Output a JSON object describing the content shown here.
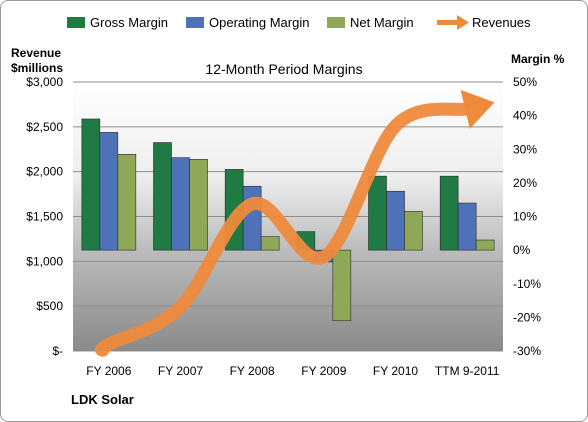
{
  "chart_data": {
    "type": "bar",
    "title": "12-Month Period Margins",
    "company_label": "LDK Solar",
    "left_axis_title": [
      "Revenue",
      "$millions"
    ],
    "right_axis_title": "Margin %",
    "categories": [
      "FY 2006",
      "FY 2007",
      "FY 2008",
      "FY 2009",
      "FY 2010",
      "TTM 9-2011"
    ],
    "left_axis": {
      "ylim": [
        0,
        3000
      ],
      "ticks": [
        0,
        500,
        1000,
        1500,
        2000,
        2500,
        3000
      ],
      "tick_labels": [
        "$-",
        "$500",
        "$1,000",
        "$1,500",
        "$2,000",
        "$2,500",
        "$3,000"
      ]
    },
    "right_axis": {
      "ylim": [
        -30,
        50
      ],
      "ticks": [
        -30,
        -20,
        -10,
        0,
        10,
        20,
        30,
        40,
        50
      ],
      "tick_labels": [
        "-30%",
        "-20%",
        "-10%",
        "0%",
        "10%",
        "20%",
        "30%",
        "40%",
        "50%"
      ]
    },
    "grid": true,
    "legend_position": "top",
    "series": [
      {
        "name": "Gross Margin",
        "axis": "right",
        "kind": "bar",
        "color": "#1f7a44",
        "values": [
          39,
          32,
          24,
          5.5,
          22,
          22
        ]
      },
      {
        "name": "Operating Margin",
        "axis": "right",
        "kind": "bar",
        "color": "#4f71b8",
        "values": [
          35,
          27.5,
          19,
          -3.5,
          17.5,
          14
        ]
      },
      {
        "name": "Net Margin",
        "axis": "right",
        "kind": "bar",
        "color": "#8fa857",
        "values": [
          28.5,
          27,
          4,
          -21,
          11.5,
          3
        ]
      },
      {
        "name": "Revenues",
        "axis": "left",
        "kind": "line",
        "color": "#ee8a3c",
        "values": [
          75,
          490,
          1640,
          1050,
          2510,
          2700
        ]
      }
    ]
  }
}
